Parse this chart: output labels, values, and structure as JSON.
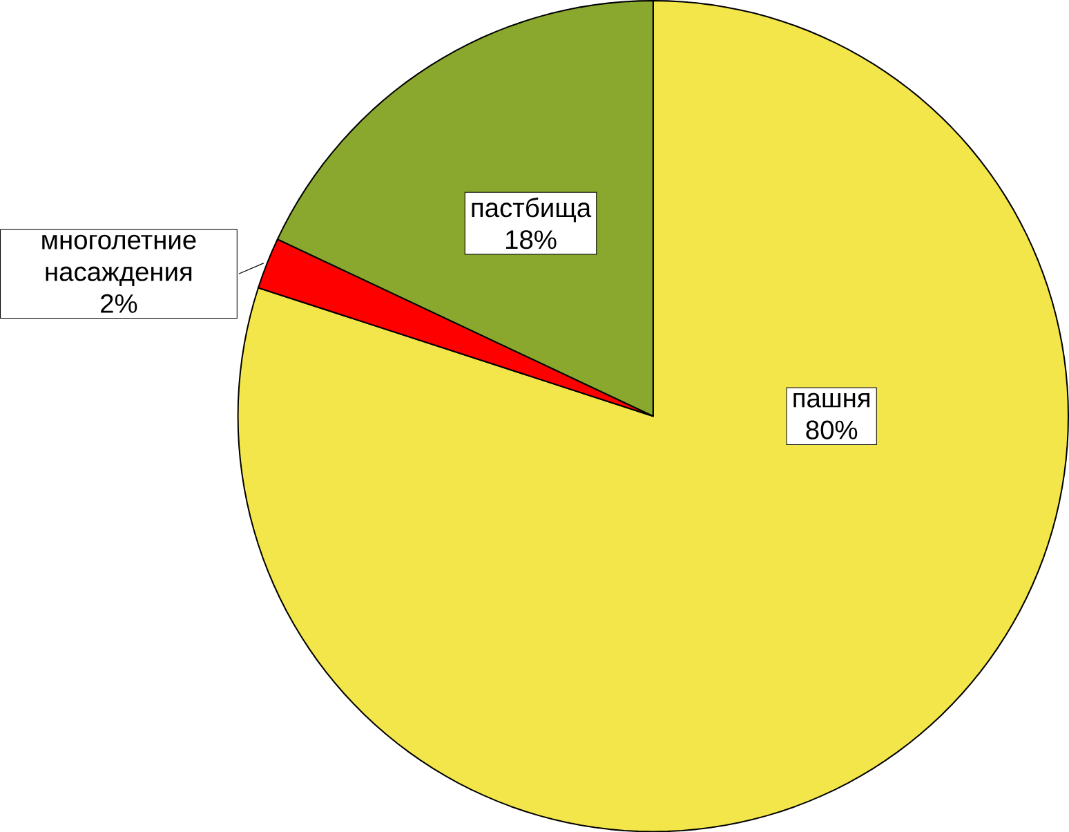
{
  "chart_data": {
    "type": "pie",
    "categories": [
      "пашня",
      "многолетние насаждения",
      "пастбища"
    ],
    "values": [
      80,
      2,
      18
    ],
    "value_labels": [
      "80%",
      "2%",
      "18%"
    ],
    "colors": [
      "#f2e64a",
      "#ff0000",
      "#8aa82e"
    ]
  }
}
